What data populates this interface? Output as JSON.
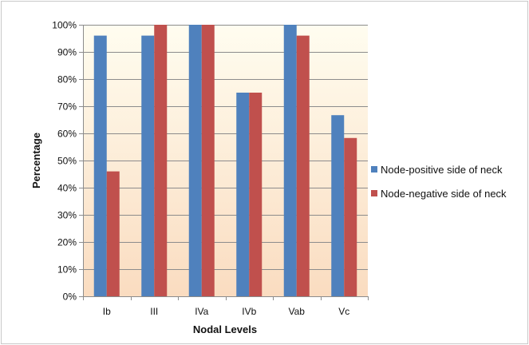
{
  "chart_data": {
    "type": "bar",
    "title": "",
    "xlabel": "Nodal Levels",
    "ylabel": "Percentage",
    "ylim": [
      0,
      100
    ],
    "y_ticks": [
      0,
      10,
      20,
      30,
      40,
      50,
      60,
      70,
      80,
      90,
      100
    ],
    "y_tick_suffix": "%",
    "categories": [
      "Ib",
      "III",
      "IVa",
      "IVb",
      "Vab",
      "Vc"
    ],
    "series": [
      {
        "name": "Node-positive side of neck",
        "color": "#4f81bd",
        "values": [
          96,
          96,
          100,
          75,
          100,
          66.7
        ]
      },
      {
        "name": "Node-negative side of neck",
        "color": "#c0504d",
        "values": [
          46,
          100,
          100,
          75,
          96,
          58.3
        ]
      }
    ],
    "grid": true,
    "legend_position": "right",
    "plot_background": "gradient cream to peach",
    "colors": {
      "plot_bg_top": "#fffdf0",
      "plot_bg_bottom": "#fadcc0",
      "gridline": "#8c8c8c",
      "axis": "#8c8c8c"
    }
  }
}
